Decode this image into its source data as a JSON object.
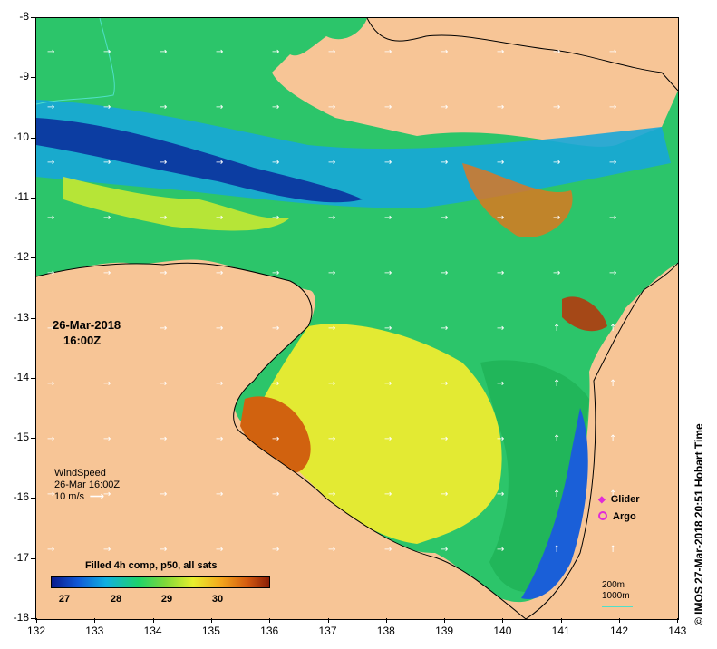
{
  "axes": {
    "x_ticks": [
      "132",
      "133",
      "134",
      "135",
      "136",
      "137",
      "138",
      "139",
      "140",
      "141",
      "142",
      "143"
    ],
    "y_ticks": [
      "-8",
      "-9",
      "-10",
      "-11",
      "-12",
      "-13",
      "-14",
      "-15",
      "-16",
      "-17",
      "-18"
    ]
  },
  "date": {
    "day": "26-Mar-2018",
    "time": "16:00Z"
  },
  "wind": {
    "title": "WindSpeed",
    "time": "26-Mar 16:00Z",
    "scale": "10 m/s"
  },
  "platforms": {
    "glider": "Glider",
    "argo": "Argo"
  },
  "colorbar": {
    "title": "Filled 4h comp, p50, all sats",
    "ticks": [
      "27",
      "28",
      "29",
      "30"
    ],
    "colors": [
      "#0a1a8c",
      "#1158d6",
      "#10b0e0",
      "#1ed36a",
      "#7dd83a",
      "#e8ef2e",
      "#f3a51c",
      "#d35a10",
      "#8a1e06"
    ]
  },
  "depth_legend": {
    "line1": "200m",
    "line2": "1000m"
  },
  "credit": "© IMOS 27-Mar-2018 20:51 Hobart Time",
  "colors": {
    "land": "#f7c596",
    "ocean_green": "#2cc56a",
    "arrow": "#ffffff"
  }
}
